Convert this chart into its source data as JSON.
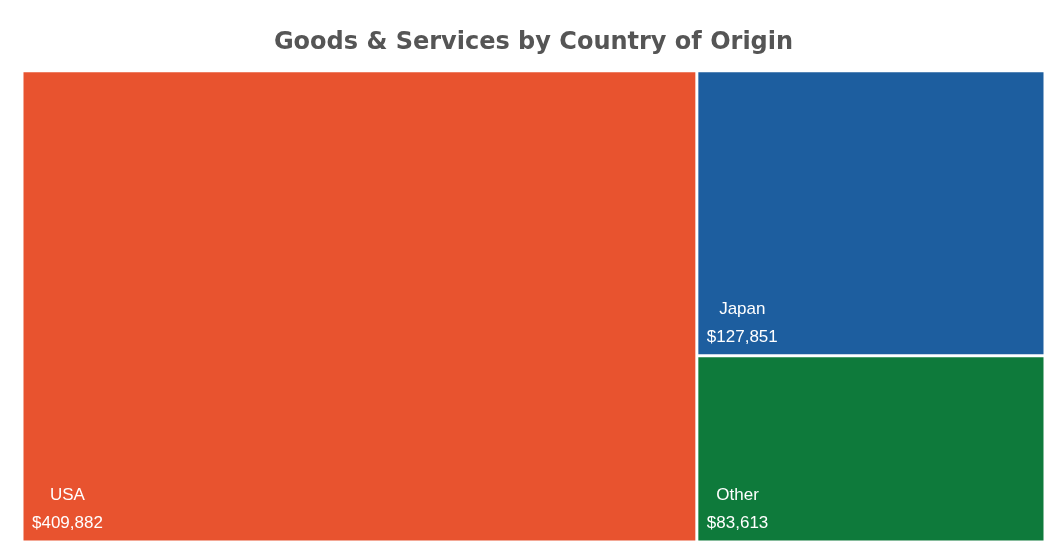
{
  "chart_data": {
    "type": "other",
    "title": "Goods & Services by Country of Origin",
    "categories": [
      "USA",
      "Japan",
      "Other"
    ],
    "values": [
      409882,
      127851,
      83613
    ],
    "value_labels": [
      "$409,882",
      "$127,851",
      "$83,613"
    ],
    "colors": [
      "#e8532f",
      "#1d5e9f",
      "#0e7a3b"
    ]
  }
}
